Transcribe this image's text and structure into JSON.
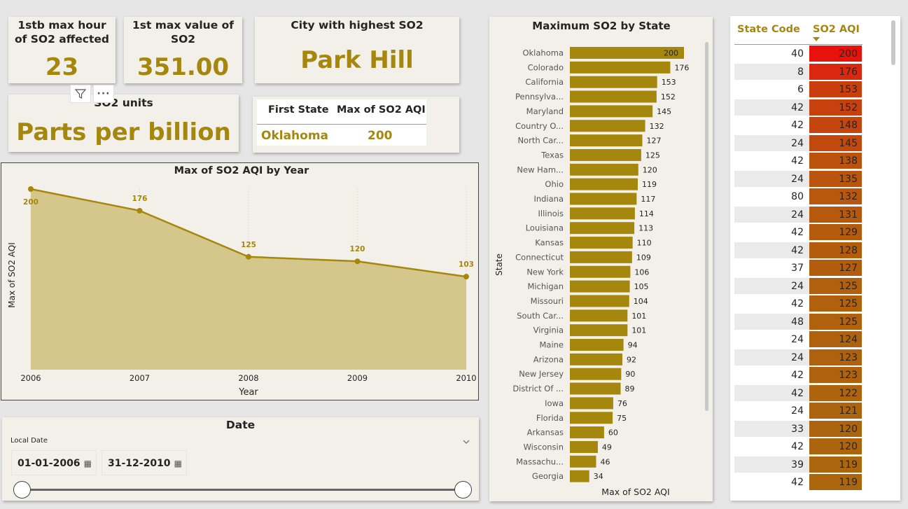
{
  "kpi": {
    "max_hour_label": "1stb max hour of SO2 affected",
    "max_hour_value": "23",
    "max_value_label": "1st max value of SO2",
    "max_value_value": "351.00",
    "city_label": "City with highest SO2",
    "city_value": "Park Hill",
    "units_label": "SO2 units",
    "units_value": "Parts per billion"
  },
  "visual_header": {
    "filter_icon": "funnel-icon",
    "more_icon": "more-options-icon",
    "more_label": "···"
  },
  "first_state": {
    "headers": [
      "First State",
      "Max of SO2 AQI"
    ],
    "state": "Oklahoma",
    "value": "200"
  },
  "date_slicer": {
    "title": "Date",
    "field": "Local Date",
    "start": "01-01-2006",
    "end": "31-12-2010",
    "calendar_icon": "calendar-icon",
    "chevron_icon": "chevron-down-icon"
  },
  "line_chart": {
    "chart_data": {
      "type": "area",
      "title": "Max of SO2 AQI by Year",
      "xlabel": "Year",
      "ylabel": "Max of SO2 AQI",
      "x": [
        "2006",
        "2007",
        "2008",
        "2009",
        "2010"
      ],
      "values": [
        200,
        176,
        125,
        120,
        103
      ],
      "color": "#a5870e",
      "fill": "#d5c78c"
    }
  },
  "bar_chart": {
    "chart_data": {
      "type": "bar",
      "orientation": "horizontal",
      "title": "Maximum SO2 by State",
      "xlabel": "Max of SO2 AQI",
      "ylabel": "State",
      "color": "#a5870e",
      "categories": [
        "Oklahoma",
        "Colorado",
        "California",
        "Pennsylva...",
        "Maryland",
        "Country O...",
        "North Car...",
        "Texas",
        "New Ham...",
        "Ohio",
        "Indiana",
        "Illinois",
        "Louisiana",
        "Kansas",
        "Connecticut",
        "New York",
        "Michigan",
        "Missouri",
        "South Car...",
        "Virginia",
        "Maine",
        "Arizona",
        "New Jersey",
        "District Of ...",
        "Iowa",
        "Florida",
        "Arkansas",
        "Wisconsin",
        "Massachu...",
        "Georgia"
      ],
      "values": [
        200,
        176,
        153,
        152,
        145,
        132,
        127,
        125,
        120,
        119,
        117,
        114,
        113,
        110,
        109,
        106,
        105,
        104,
        101,
        101,
        94,
        92,
        90,
        89,
        76,
        75,
        60,
        49,
        46,
        34
      ]
    }
  },
  "state_table": {
    "headers": [
      "State Code",
      "SO2 AQI"
    ],
    "sort_icon": "sort-descending-icon",
    "rows": [
      {
        "code": "40",
        "aqi": "200",
        "color": "#e8120c"
      },
      {
        "code": "8",
        "aqi": "176",
        "color": "#d9280f"
      },
      {
        "code": "6",
        "aqi": "153",
        "color": "#ca3e0e"
      },
      {
        "code": "42",
        "aqi": "152",
        "color": "#c8400e"
      },
      {
        "code": "42",
        "aqi": "148",
        "color": "#c5450e"
      },
      {
        "code": "24",
        "aqi": "145",
        "color": "#c2490e"
      },
      {
        "code": "42",
        "aqi": "138",
        "color": "#bb520e"
      },
      {
        "code": "24",
        "aqi": "135",
        "color": "#b9550e"
      },
      {
        "code": "80",
        "aqi": "132",
        "color": "#b7580e"
      },
      {
        "code": "24",
        "aqi": "131",
        "color": "#b6590e"
      },
      {
        "code": "42",
        "aqi": "129",
        "color": "#b45b0e"
      },
      {
        "code": "42",
        "aqi": "128",
        "color": "#b35c0e"
      },
      {
        "code": "37",
        "aqi": "127",
        "color": "#b25d0e"
      },
      {
        "code": "24",
        "aqi": "125",
        "color": "#b1600e"
      },
      {
        "code": "42",
        "aqi": "125",
        "color": "#b1600e"
      },
      {
        "code": "48",
        "aqi": "125",
        "color": "#b1600e"
      },
      {
        "code": "24",
        "aqi": "124",
        "color": "#b0610e"
      },
      {
        "code": "24",
        "aqi": "123",
        "color": "#af620e"
      },
      {
        "code": "42",
        "aqi": "123",
        "color": "#af620e"
      },
      {
        "code": "42",
        "aqi": "122",
        "color": "#ae630e"
      },
      {
        "code": "24",
        "aqi": "121",
        "color": "#ad640e"
      },
      {
        "code": "33",
        "aqi": "120",
        "color": "#ac650e"
      },
      {
        "code": "42",
        "aqi": "120",
        "color": "#ac650e"
      },
      {
        "code": "39",
        "aqi": "119",
        "color": "#ab660e"
      },
      {
        "code": "42",
        "aqi": "119",
        "color": "#ab660e"
      }
    ]
  }
}
